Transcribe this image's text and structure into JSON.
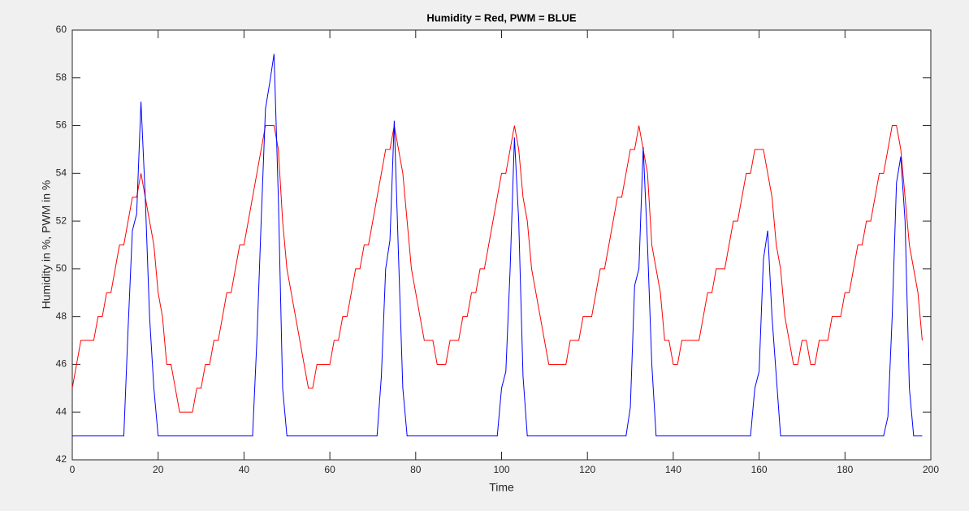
{
  "chart_data": {
    "type": "line",
    "title": "Humidity = Red, PWM = BLUE",
    "xlabel": "Time",
    "ylabel": "Humidity in %, PWM in %",
    "x": [
      0,
      1,
      2,
      3,
      4,
      5,
      6,
      7,
      8,
      9,
      10,
      11,
      12,
      13,
      14,
      15,
      16,
      17,
      18,
      19,
      20,
      21,
      22,
      23,
      24,
      25,
      26,
      27,
      28,
      29,
      30,
      31,
      32,
      33,
      34,
      35,
      36,
      37,
      38,
      39,
      40,
      41,
      42,
      43,
      44,
      45,
      46,
      47,
      48,
      49,
      50,
      51,
      52,
      53,
      54,
      55,
      56,
      57,
      58,
      59,
      60,
      61,
      62,
      63,
      64,
      65,
      66,
      67,
      68,
      69,
      70,
      71,
      72,
      73,
      74,
      75,
      76,
      77,
      78,
      79,
      80,
      81,
      82,
      83,
      84,
      85,
      86,
      87,
      88,
      89,
      90,
      91,
      92,
      93,
      94,
      95,
      96,
      97,
      98,
      99,
      100,
      101,
      102,
      103,
      104,
      105,
      106,
      107,
      108,
      109,
      110,
      111,
      112,
      113,
      114,
      115,
      116,
      117,
      118,
      119,
      120,
      121,
      122,
      123,
      124,
      125,
      126,
      127,
      128,
      129,
      130,
      131,
      132,
      133,
      134,
      135,
      136,
      137,
      138,
      139,
      140,
      141,
      142,
      143,
      144,
      145,
      146,
      147,
      148,
      149,
      150,
      151,
      152,
      153,
      154,
      155,
      156,
      157,
      158,
      159,
      160,
      161,
      162,
      163,
      164,
      165,
      166,
      167,
      168,
      169,
      170,
      171,
      172,
      173,
      174,
      175,
      176,
      177,
      178,
      179,
      180,
      181,
      182,
      183,
      184,
      185,
      186,
      187,
      188,
      189,
      190,
      191,
      192,
      193,
      194,
      195,
      196,
      197,
      198
    ],
    "series": [
      {
        "name": "Humidity",
        "color": "#ff0000",
        "values": [
          45,
          46,
          47,
          47,
          47,
          47,
          48,
          48,
          49,
          49,
          50,
          51,
          51,
          52,
          53,
          53,
          54,
          53,
          52,
          51,
          49,
          48,
          46,
          46,
          45,
          44,
          44,
          44,
          44,
          45,
          45,
          46,
          46,
          47,
          47,
          48,
          49,
          49,
          50,
          51,
          51,
          52,
          53,
          54,
          55,
          56,
          56,
          56,
          55,
          52,
          50,
          49,
          48,
          47,
          46,
          45,
          45,
          46,
          46,
          46,
          46,
          47,
          47,
          48,
          48,
          49,
          50,
          50,
          51,
          51,
          52,
          53,
          54,
          55,
          55,
          56,
          55,
          54,
          52,
          50,
          49,
          48,
          47,
          47,
          47,
          46,
          46,
          46,
          47,
          47,
          47,
          48,
          48,
          49,
          49,
          50,
          50,
          51,
          52,
          53,
          54,
          54,
          55,
          56,
          55,
          53,
          52,
          50,
          49,
          48,
          47,
          46,
          46,
          46,
          46,
          46,
          47,
          47,
          47,
          48,
          48,
          48,
          49,
          50,
          50,
          51,
          52,
          53,
          53,
          54,
          55,
          55,
          56,
          55,
          54,
          51,
          50,
          49,
          47,
          47,
          46,
          46,
          47,
          47,
          47,
          47,
          47,
          48,
          49,
          49,
          50,
          50,
          50,
          51,
          52,
          52,
          53,
          54,
          54,
          55,
          55,
          55,
          54,
          53,
          51,
          50,
          48,
          47,
          46,
          46,
          47,
          47,
          46,
          46,
          47,
          47,
          47,
          48,
          48,
          48,
          49,
          49,
          50,
          51,
          51,
          52,
          52,
          53,
          54,
          54,
          55,
          56,
          56,
          55,
          53,
          51,
          50,
          49,
          47
        ]
      },
      {
        "name": "PWM",
        "color": "#0000ff",
        "values": [
          43,
          43,
          43,
          43,
          43,
          43,
          43,
          43,
          43,
          43,
          43,
          43,
          43,
          47.5,
          51.6,
          52.3,
          57,
          53,
          48,
          45,
          43,
          43,
          43,
          43,
          43,
          43,
          43,
          43,
          43,
          43,
          43,
          43,
          43,
          43,
          43,
          43,
          43,
          43,
          43,
          43,
          43,
          43,
          43,
          47,
          52,
          56.7,
          57.8,
          59,
          53,
          45,
          43,
          43,
          43,
          43,
          43,
          43,
          43,
          43,
          43,
          43,
          43,
          43,
          43,
          43,
          43,
          43,
          43,
          43,
          43,
          43,
          43,
          43,
          45.5,
          50,
          51.2,
          56.2,
          50.5,
          45,
          43,
          43,
          43,
          43,
          43,
          43,
          43,
          43,
          43,
          43,
          43,
          43,
          43,
          43,
          43,
          43,
          43,
          43,
          43,
          43,
          43,
          43,
          45,
          45.7,
          50,
          55.5,
          52,
          45.5,
          43,
          43,
          43,
          43,
          43,
          43,
          43,
          43,
          43,
          43,
          43,
          43,
          43,
          43,
          43,
          43,
          43,
          43,
          43,
          43,
          43,
          43,
          43,
          43,
          44.2,
          49.3,
          50,
          55.1,
          51,
          46,
          43,
          43,
          43,
          43,
          43,
          43,
          43,
          43,
          43,
          43,
          43,
          43,
          43,
          43,
          43,
          43,
          43,
          43,
          43,
          43,
          43,
          43,
          43,
          45,
          45.7,
          50.4,
          51.6,
          48,
          45.5,
          43,
          43,
          43,
          43,
          43,
          43,
          43,
          43,
          43,
          43,
          43,
          43,
          43,
          43,
          43,
          43,
          43,
          43,
          43,
          43,
          43,
          43,
          43,
          43,
          43,
          43.8,
          48,
          53.6,
          54.7,
          52,
          45,
          43,
          43,
          43
        ]
      }
    ],
    "xlim": [
      0,
      200
    ],
    "xticks": [
      0,
      20,
      40,
      60,
      80,
      100,
      120,
      140,
      160,
      180,
      200
    ],
    "ylim": [
      42,
      60
    ],
    "yticks": [
      42,
      44,
      46,
      48,
      50,
      52,
      54,
      56,
      58,
      60
    ]
  }
}
